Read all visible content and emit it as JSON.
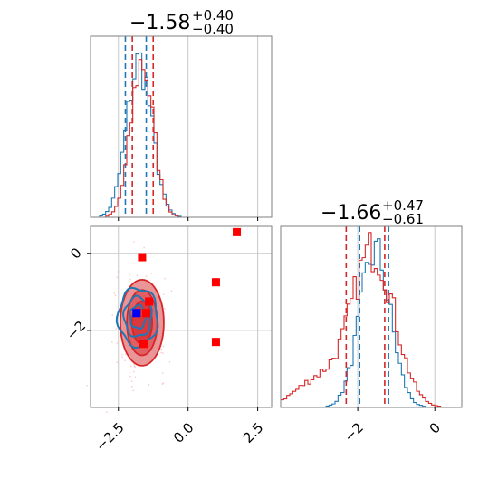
{
  "chart_data": [
    {
      "panel": "marginal-1",
      "type": "histogram",
      "title": {
        "median": "−1.58",
        "plus": "+0.40",
        "minus": "−0.40"
      },
      "xlim": [
        -3.5,
        3.0
      ],
      "xticks": [
        -2.5,
        0.0,
        2.5
      ],
      "grid": true,
      "series": [
        {
          "color": "#1f77b4",
          "peak": -1.75,
          "sd": 0.45,
          "quantiles": [
            -2.25,
            -1.5
          ]
        },
        {
          "color": "#d62728",
          "peak": -1.65,
          "sd": 0.4,
          "quantiles": [
            -2.0,
            -1.25
          ]
        }
      ]
    },
    {
      "panel": "joint",
      "type": "scatter",
      "xlim": [
        -3.5,
        3.0
      ],
      "ylim": [
        -4.0,
        0.7
      ],
      "xticks": [
        -2.5,
        0.0,
        2.5
      ],
      "xtick_labels": [
        "−2.5",
        "0.0",
        "2.5"
      ],
      "yticks": [
        0,
        -2
      ],
      "ytick_labels": [
        "0",
        "−2"
      ],
      "grid": true,
      "contour_centers": [
        {
          "color": "#1f77b4",
          "x": -1.8,
          "y": -1.65
        },
        {
          "color": "#d62728",
          "x": -1.65,
          "y": -1.8
        }
      ],
      "markers": [
        {
          "color": "#ff0000",
          "x": 1.75,
          "y": 0.55
        },
        {
          "color": "#ff0000",
          "x": -1.65,
          "y": -0.1
        },
        {
          "color": "#ff0000",
          "x": 1.0,
          "y": -0.75
        },
        {
          "color": "#ff0000",
          "x": 1.0,
          "y": -2.3
        },
        {
          "color": "#ff0000",
          "x": -1.5,
          "y": -1.55
        },
        {
          "color": "#ff0000",
          "x": -1.4,
          "y": -1.25
        },
        {
          "color": "#ff0000",
          "x": -1.6,
          "y": -2.35
        },
        {
          "color": "#0000ff",
          "x": -1.85,
          "y": -1.55
        }
      ]
    },
    {
      "panel": "marginal-2",
      "type": "histogram",
      "title": {
        "median": "−1.66",
        "plus": "+0.47",
        "minus": "−0.61"
      },
      "xlim": [
        -4.0,
        0.7
      ],
      "xticks": [
        -2,
        0
      ],
      "xtick_labels": [
        "−2",
        "0"
      ],
      "grid": true,
      "series": [
        {
          "color": "#1f77b4",
          "peak": -1.55,
          "sd": 0.4,
          "quantiles": [
            -1.95,
            -1.2
          ]
        },
        {
          "color": "#d62728",
          "peak": -1.6,
          "sd": 0.55,
          "quantiles": [
            -2.3,
            -1.3
          ]
        }
      ]
    }
  ]
}
